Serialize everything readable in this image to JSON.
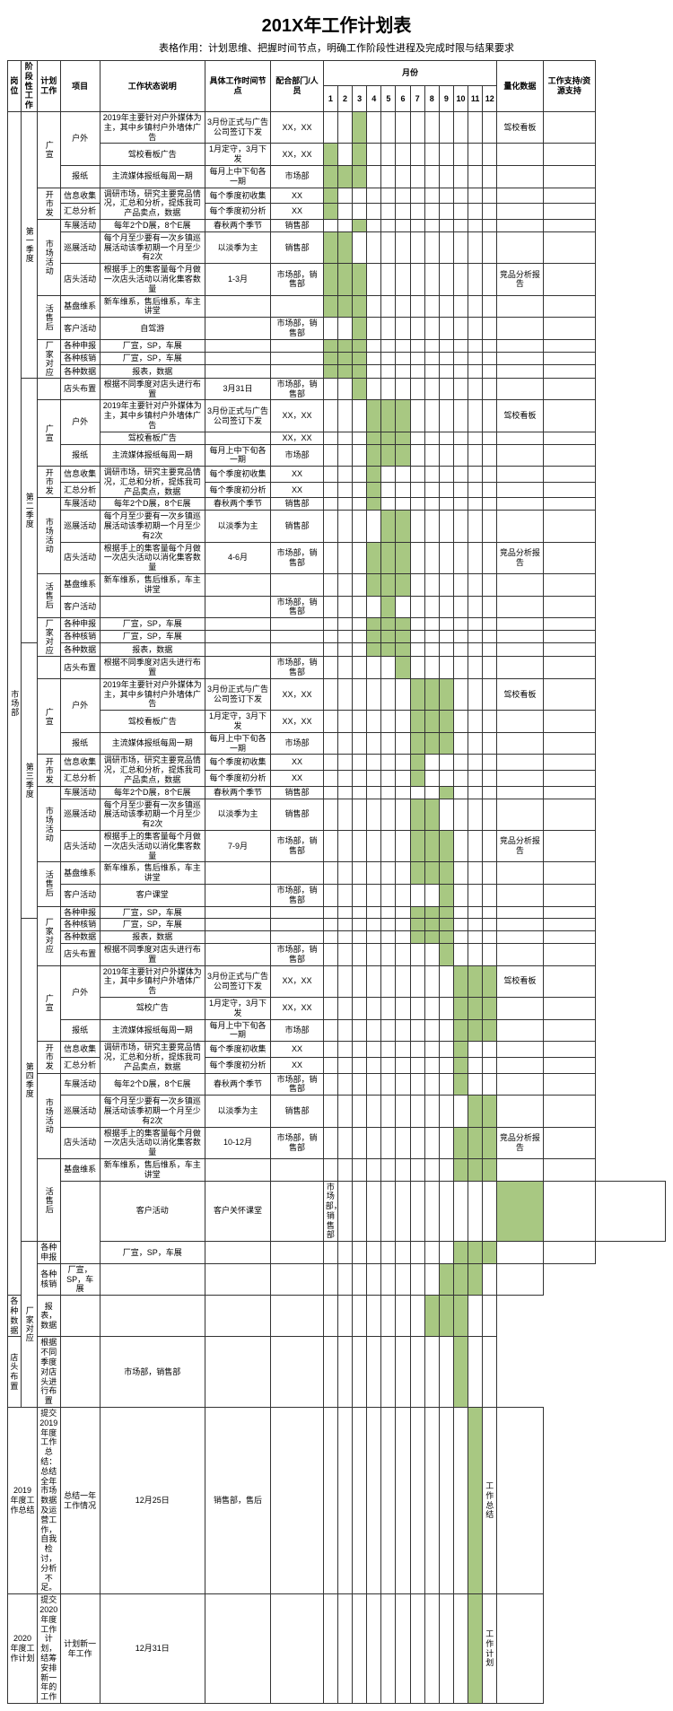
{
  "title": "201X年工作计划表",
  "subtitle": "表格作用：计划思维、把握时间节点，明确工作阶段性进程及完成时限与结果要求",
  "headers": {
    "post": "岗位",
    "stage": "阶段性工作",
    "plan": "计划工作",
    "proj": "项目",
    "desc": "工作状态说明",
    "time": "具体工作时间节点",
    "dept": "配合部门/人员",
    "month": "月份",
    "quant": "量化数据",
    "supp": "工作支持/资源支持"
  },
  "dept": "市场部",
  "q": [
    "第一季度",
    "第二季度",
    "第三季度",
    "第四季度"
  ],
  "plan": {
    "guangxuan": "广宣",
    "kaifa": "开市发",
    "shichang": "市场活动",
    "huodong": "活售后",
    "changjia": "厂家对应"
  },
  "proj": {
    "huwai": "户外",
    "baozhi": "报纸",
    "xinxi": "信息收集",
    "huizong": "汇总分析",
    "chezhan": "车展活动",
    "xunzhan": "巡展活动",
    "diantou": "店头活动",
    "jipan": "基盘维系",
    "kehu": "客户活动",
    "shenbao": "各种申报",
    "hexiao": "各种核销",
    "shuju": "各种数据",
    "diantoubz": "店头布置"
  },
  "desc": {
    "huwai1": "2019年主要针对户外媒体为主，其中乡镇村户外墙体广告",
    "jiaokao": "驾校看板广告",
    "jiaokao4": "驾校广告",
    "baozhi": "主流媒体报纸每周一期",
    "xinxi": "调研市场，研究主要竞品情况，汇总和分析，提炼我司产品卖点，数据",
    "chezhan": "每年2个D展，8个E展",
    "xunzhan": "每个月至少要有一次乡镇巡展活动该季初期一个月至少有2次",
    "diantou1": "根据手上的集客量每个月做一次店头活动以消化集客数量",
    "jipan": "新车维系，售后维系，车主讲堂",
    "kehu1": "自驾游",
    "kehu2": "",
    "kehu3": "客户课堂",
    "kehu4": "客户关怀课堂",
    "changxuan": "厂宣，SP，车展",
    "shuju": "报表，数据",
    "diantoubz": "根据不同季度对店头进行布置",
    "summary2019": "提交2019年度工作总结：总结全年市场数据及运营工作，自我检讨，分析不足。",
    "summary2020": "提交2020年度工作计划，结筹安排新一年的工作"
  },
  "time": {
    "qianding": "3月份正式与广告公司签订下发",
    "1yue": "1月定守，3月下发",
    "1yue3": "1月定守，3月下发",
    "meiyue": "每月上中下旬各一期",
    "jidu": "每个季度初收集",
    "jidufx": "每个季度初分析",
    "chunqiu": "春秋两个季节",
    "danji": "以淡季为主",
    "q1": "1-3月",
    "q2": "4-6月",
    "q3": "7-9月",
    "q4": "10-12月",
    "331": "3月31日",
    "1225": "12月25日",
    "1231": "12月31日",
    "zongjie": "总结一年工作情况",
    "jihua": "计划新一年工作"
  },
  "dept_v": {
    "xx": "XX，XX",
    "xx1": "XX",
    "scb": "市场部",
    "xsb": "销售部",
    "scxsb": "市场部，销售部",
    "xsbsh": "销售部，售后"
  },
  "quant": {
    "jiaokao": "驾校看板",
    "jingpin": "竞品分析报告",
    "zongjie": "工作总结",
    "jihua": "工作计划"
  },
  "lbl": {
    "2019": "2019年度工作总结",
    "2020": "2020年度工作计划"
  }
}
